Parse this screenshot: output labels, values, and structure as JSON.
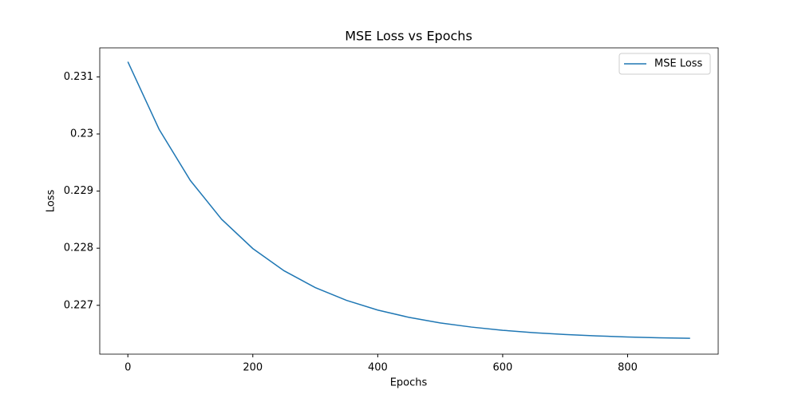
{
  "chart_data": {
    "type": "line",
    "title": "MSE Loss vs Epochs",
    "x_label": "Epochs",
    "y_label": "Loss",
    "x": [
      0,
      50,
      100,
      150,
      200,
      250,
      300,
      350,
      400,
      450,
      500,
      550,
      600,
      650,
      700,
      750,
      800,
      850,
      900
    ],
    "series": [
      {
        "name": "MSE Loss",
        "color": "#1f77b4",
        "values": [
          0.231264,
          0.230082,
          0.229186,
          0.228508,
          0.227994,
          0.227605,
          0.22731,
          0.227087,
          0.226917,
          0.226789,
          0.226692,
          0.226619,
          0.226563,
          0.226521,
          0.226489,
          0.226465,
          0.226446,
          0.226432,
          0.226422
        ]
      }
    ],
    "xlim": [
      -45,
      945
    ],
    "xticks": [
      0,
      200,
      400,
      600,
      800
    ],
    "ylim": [
      0.226145,
      0.231508
    ],
    "yticks": [
      0.227,
      0.228,
      0.229,
      0.23,
      0.231
    ],
    "grid": false,
    "legend": "upper right"
  }
}
